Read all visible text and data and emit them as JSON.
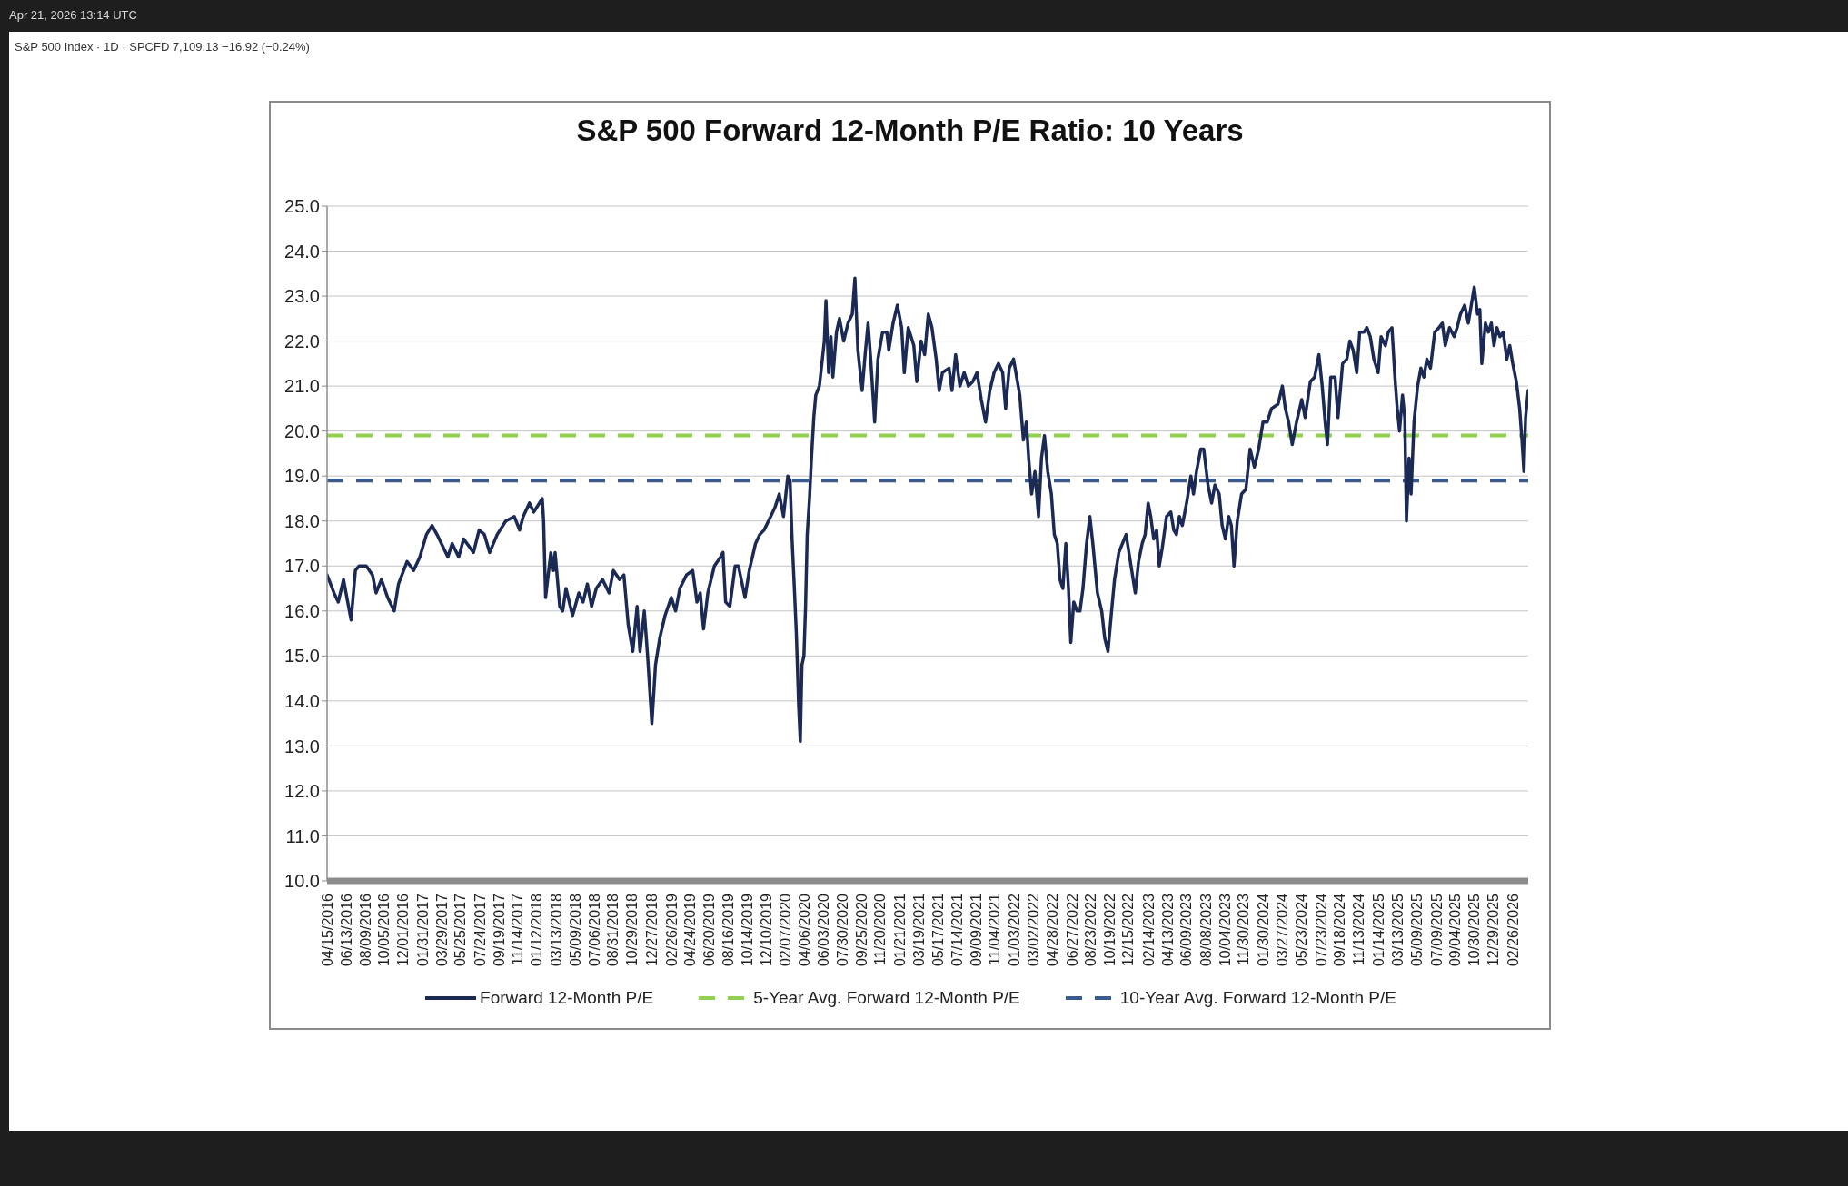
{
  "chart_data": {
    "type": "line",
    "title": "S&P 500 Forward 12-Month P/E Ratio: 10 Years",
    "annotations": [
      "Apr 21, 2026 13:14 UTC",
      "S&P 500 Index · 1D · SPCFD 7,109.13 −16.92 (−0.24%)"
    ],
    "series": [
      {
        "name": "Forward 12-Month P/E",
        "color": "#1b2a55",
        "x": [
          "2016-04-15",
          "2016-05-06",
          "2016-05-19",
          "2016-06-04",
          "2016-06-14",
          "2016-06-27",
          "2016-07-10",
          "2016-07-21",
          "2016-08-12",
          "2016-08-31",
          "2016-09-11",
          "2016-09-27",
          "2016-10-16",
          "2016-11-05",
          "2016-11-18",
          "2016-12-14",
          "2017-01-03",
          "2017-01-22",
          "2017-02-11",
          "2017-02-28",
          "2017-03-15",
          "2017-04-17",
          "2017-04-30",
          "2017-05-20",
          "2017-06-04",
          "2017-07-04",
          "2017-07-21",
          "2017-08-06",
          "2017-08-22",
          "2017-09-14",
          "2017-10-10",
          "2017-11-05",
          "2017-11-21",
          "2017-12-02",
          "2017-12-21",
          "2018-01-03",
          "2018-01-29",
          "2018-02-02",
          "2018-02-08",
          "2018-02-24",
          "2018-03-04",
          "2018-03-09",
          "2018-03-23",
          "2018-04-01",
          "2018-04-11",
          "2018-05-01",
          "2018-05-20",
          "2018-06-02",
          "2018-06-15",
          "2018-06-28",
          "2018-07-12",
          "2018-07-31",
          "2018-08-20",
          "2018-09-02",
          "2018-09-21",
          "2018-10-04",
          "2018-10-17",
          "2018-10-31",
          "2018-11-13",
          "2018-11-22",
          "2018-12-05",
          "2018-12-15",
          "2018-12-28",
          "2019-01-08",
          "2019-01-21",
          "2019-02-06",
          "2019-02-25",
          "2019-03-10",
          "2019-03-23",
          "2019-04-12",
          "2019-05-01",
          "2019-05-14",
          "2019-05-24",
          "2019-06-03",
          "2019-06-16",
          "2019-07-06",
          "2019-07-25",
          "2019-08-01",
          "2019-08-09",
          "2019-08-22",
          "2019-09-07",
          "2019-09-17",
          "2019-10-07",
          "2019-10-20",
          "2019-11-08",
          "2019-11-21",
          "2019-12-04",
          "2019-12-24",
          "2020-01-06",
          "2020-01-19",
          "2020-02-01",
          "2020-02-14",
          "2020-02-21",
          "2020-02-27",
          "2020-03-05",
          "2020-03-11",
          "2020-03-18",
          "2020-03-23",
          "2020-03-28",
          "2020-04-03",
          "2020-04-08",
          "2020-04-13",
          "2020-04-20",
          "2020-04-26",
          "2020-05-03",
          "2020-05-09",
          "2020-05-20",
          "2020-05-29",
          "2020-06-04",
          "2020-06-09",
          "2020-06-17",
          "2020-06-24",
          "2020-06-30",
          "2020-07-11",
          "2020-07-20",
          "2020-08-02",
          "2020-08-15",
          "2020-08-28",
          "2020-09-05",
          "2020-09-14",
          "2020-09-27",
          "2020-10-06",
          "2020-10-15",
          "2020-10-23",
          "2020-11-04",
          "2020-11-14",
          "2020-11-28",
          "2020-12-11",
          "2020-12-17",
          "2020-12-30",
          "2021-01-12",
          "2021-01-25",
          "2021-02-02",
          "2021-02-14",
          "2021-03-03",
          "2021-03-12",
          "2021-03-25",
          "2021-04-05",
          "2021-04-16",
          "2021-04-27",
          "2021-05-10",
          "2021-05-19",
          "2021-05-29",
          "2021-06-18",
          "2021-06-27",
          "2021-07-08",
          "2021-07-21",
          "2021-08-03",
          "2021-08-16",
          "2021-08-29",
          "2021-09-11",
          "2021-09-24",
          "2021-10-07",
          "2021-10-20",
          "2021-11-02",
          "2021-11-15",
          "2021-11-28",
          "2021-12-07",
          "2021-12-18",
          "2021-12-31",
          "2022-01-19",
          "2022-01-30",
          "2022-02-08",
          "2022-02-15",
          "2022-02-24",
          "2022-03-06",
          "2022-03-17",
          "2022-03-26",
          "2022-04-04",
          "2022-04-14",
          "2022-04-25",
          "2022-05-04",
          "2022-05-13",
          "2022-05-21",
          "2022-05-30",
          "2022-06-08",
          "2022-06-16",
          "2022-06-23",
          "2022-07-02",
          "2022-07-12",
          "2022-07-21",
          "2022-07-30",
          "2022-08-10",
          "2022-08-20",
          "2022-08-29",
          "2022-09-12",
          "2022-09-25",
          "2022-10-04",
          "2022-10-14",
          "2022-10-25",
          "2022-11-03",
          "2022-11-16",
          "2022-12-08",
          "2023-01-05",
          "2023-01-15",
          "2023-01-26",
          "2023-02-04",
          "2023-02-13",
          "2023-02-21",
          "2023-03-02",
          "2023-03-11",
          "2023-03-19",
          "2023-03-28",
          "2023-04-10",
          "2023-04-23",
          "2023-05-02",
          "2023-05-10",
          "2023-05-19",
          "2023-05-28",
          "2023-06-10",
          "2023-06-23",
          "2023-07-01",
          "2023-07-10",
          "2023-07-23",
          "2023-08-01",
          "2023-08-14",
          "2023-08-25",
          "2023-09-04",
          "2023-09-17",
          "2023-09-26",
          "2023-10-06",
          "2023-10-16",
          "2023-10-24",
          "2023-11-01",
          "2023-11-11",
          "2023-11-24",
          "2023-12-07",
          "2023-12-20",
          "2024-01-02",
          "2024-01-15",
          "2024-01-28",
          "2024-02-10",
          "2024-02-23",
          "2024-03-14",
          "2024-03-27",
          "2024-04-05",
          "2024-04-15",
          "2024-04-26",
          "2024-05-09",
          "2024-05-25",
          "2024-06-04",
          "2024-06-20",
          "2024-07-03",
          "2024-07-16",
          "2024-07-26",
          "2024-08-04",
          "2024-08-11",
          "2024-08-21",
          "2024-09-03",
          "2024-09-12",
          "2024-09-26",
          "2024-10-09",
          "2024-10-18",
          "2024-10-28",
          "2024-11-08",
          "2024-11-17",
          "2024-11-30",
          "2024-12-09",
          "2024-12-19",
          "2024-12-30",
          "2025-01-12",
          "2025-01-21",
          "2025-02-03",
          "2025-02-12",
          "2025-02-23",
          "2025-03-04",
          "2025-03-11",
          "2025-03-18",
          "2025-03-27",
          "2025-04-03",
          "2025-04-08",
          "2025-04-16",
          "2025-04-22",
          "2025-05-01",
          "2025-05-12",
          "2025-05-22",
          "2025-05-31",
          "2025-06-09",
          "2025-06-20",
          "2025-07-03",
          "2025-07-16",
          "2025-07-26",
          "2025-08-04",
          "2025-08-17",
          "2025-08-31",
          "2025-09-09",
          "2025-09-19",
          "2025-10-02",
          "2025-10-13",
          "2025-10-22",
          "2025-10-31",
          "2025-11-10",
          "2025-11-17",
          "2025-11-23",
          "2025-12-04",
          "2025-12-13",
          "2025-12-22",
          "2025-12-30",
          "2026-01-08",
          "2026-01-17",
          "2026-01-27",
          "2026-02-07",
          "2026-02-16",
          "2026-02-25",
          "2026-03-08",
          "2026-03-18",
          "2026-03-25",
          "2026-03-31",
          "2026-04-05",
          "2026-04-13"
        ],
        "values": [
          16.8,
          16.4,
          16.2,
          16.7,
          16.3,
          15.8,
          16.9,
          17.0,
          17.0,
          16.8,
          16.4,
          16.7,
          16.3,
          16.0,
          16.6,
          17.1,
          16.9,
          17.2,
          17.7,
          17.9,
          17.7,
          17.2,
          17.5,
          17.2,
          17.6,
          17.3,
          17.8,
          17.7,
          17.3,
          17.7,
          18.0,
          18.1,
          17.8,
          18.1,
          18.4,
          18.2,
          18.5,
          18.0,
          16.3,
          17.3,
          16.9,
          17.3,
          16.1,
          16.0,
          16.5,
          15.9,
          16.4,
          16.2,
          16.6,
          16.1,
          16.5,
          16.7,
          16.4,
          16.9,
          16.7,
          16.8,
          15.7,
          15.1,
          16.1,
          15.1,
          16.0,
          15.0,
          13.5,
          14.8,
          15.4,
          15.9,
          16.3,
          16.0,
          16.5,
          16.8,
          16.9,
          16.2,
          16.4,
          15.6,
          16.4,
          17.0,
          17.2,
          17.3,
          16.2,
          16.1,
          17.0,
          17.0,
          16.3,
          16.9,
          17.5,
          17.7,
          17.8,
          18.1,
          18.3,
          18.6,
          18.1,
          19.0,
          18.9,
          17.6,
          16.5,
          15.5,
          13.9,
          13.1,
          14.8,
          15.0,
          16.1,
          17.7,
          18.5,
          19.4,
          20.3,
          20.8,
          21.0,
          21.6,
          22.0,
          22.9,
          21.3,
          22.1,
          21.2,
          22.2,
          22.5,
          22.0,
          22.4,
          22.6,
          23.4,
          21.8,
          20.9,
          21.7,
          22.4,
          21.6,
          20.2,
          21.6,
          22.2,
          22.2,
          21.8,
          22.4,
          22.8,
          22.3,
          21.3,
          22.3,
          21.9,
          21.1,
          22.0,
          21.7,
          22.6,
          22.3,
          21.6,
          20.9,
          21.3,
          21.4,
          20.9,
          21.7,
          21.0,
          21.3,
          21.0,
          21.1,
          21.3,
          20.7,
          20.2,
          20.9,
          21.3,
          21.5,
          21.3,
          20.5,
          21.4,
          21.6,
          20.8,
          19.8,
          20.2,
          19.4,
          18.6,
          19.1,
          18.1,
          19.4,
          19.9,
          19.1,
          18.6,
          17.7,
          17.5,
          16.7,
          16.5,
          17.5,
          16.5,
          15.3,
          16.2,
          16.0,
          16.0,
          16.5,
          17.5,
          18.1,
          17.5,
          16.4,
          16.0,
          15.4,
          15.1,
          16.0,
          16.7,
          17.3,
          17.7,
          16.4,
          17.1,
          17.5,
          17.7,
          18.4,
          18.1,
          17.6,
          17.8,
          17.0,
          17.4,
          18.1,
          18.2,
          17.8,
          17.7,
          18.1,
          17.9,
          18.4,
          19.0,
          18.6,
          19.1,
          19.6,
          19.6,
          18.8,
          18.4,
          18.8,
          18.6,
          17.9,
          17.6,
          18.1,
          17.9,
          17.0,
          18.0,
          18.6,
          18.7,
          19.6,
          19.2,
          19.6,
          20.2,
          20.2,
          20.5,
          20.6,
          21.0,
          20.5,
          20.2,
          19.7,
          20.2,
          20.7,
          20.3,
          21.1,
          21.2,
          21.7,
          21.0,
          20.2,
          19.7,
          21.2,
          21.2,
          20.3,
          21.5,
          21.6,
          22.0,
          21.8,
          21.3,
          22.2,
          22.2,
          22.3,
          22.1,
          21.6,
          21.3,
          22.1,
          21.9,
          22.2,
          22.3,
          21.2,
          20.5,
          20.0,
          20.8,
          20.3,
          18.0,
          19.4,
          18.6,
          20.2,
          21.0,
          21.4,
          21.2,
          21.6,
          21.4,
          22.2,
          22.3,
          22.4,
          21.9,
          22.3,
          22.1,
          22.3,
          22.6,
          22.8,
          22.4,
          22.8,
          23.2,
          22.6,
          22.7,
          21.5,
          22.4,
          22.2,
          22.4,
          21.9,
          22.3,
          22.1,
          22.2,
          21.6,
          21.9,
          21.5,
          21.1,
          20.5,
          19.8,
          19.1,
          20.3,
          20.9
        ]
      }
    ],
    "ref_lines": [
      {
        "axis": "y",
        "value": 19.9,
        "label": "5-Year Avg. Forward 12-Month P/E",
        "color": "#92d050",
        "line_style": "dashed"
      },
      {
        "axis": "y",
        "value": 18.9,
        "label": "10-Year Avg. Forward 12-Month P/E",
        "color": "#3b5b8f",
        "line_style": "dashed"
      }
    ],
    "xlim": [
      "2016-04-15",
      "2026-04-13"
    ],
    "xticks": [
      {
        "value": "2016-04-15",
        "label": "04/15/2016"
      },
      {
        "value": "2016-06-13",
        "label": "06/13/2016"
      },
      {
        "value": "2016-08-09",
        "label": "08/09/2016"
      },
      {
        "value": "2016-10-05",
        "label": "10/05/2016"
      },
      {
        "value": "2016-12-01",
        "label": "12/01/2016"
      },
      {
        "value": "2017-01-31",
        "label": "01/31/2017"
      },
      {
        "value": "2017-03-29",
        "label": "03/29/2017"
      },
      {
        "value": "2017-05-25",
        "label": "05/25/2017"
      },
      {
        "value": "2017-07-24",
        "label": "07/24/2017"
      },
      {
        "value": "2017-09-19",
        "label": "09/19/2017"
      },
      {
        "value": "2017-11-14",
        "label": "11/14/2017"
      },
      {
        "value": "2018-01-12",
        "label": "01/12/2018"
      },
      {
        "value": "2018-03-13",
        "label": "03/13/2018"
      },
      {
        "value": "2018-05-09",
        "label": "05/09/2018"
      },
      {
        "value": "2018-07-06",
        "label": "07/06/2018"
      },
      {
        "value": "2018-08-31",
        "label": "08/31/2018"
      },
      {
        "value": "2018-10-29",
        "label": "10/29/2018"
      },
      {
        "value": "2018-12-27",
        "label": "12/27/2018"
      },
      {
        "value": "2019-02-26",
        "label": "02/26/2019"
      },
      {
        "value": "2019-04-24",
        "label": "04/24/2019"
      },
      {
        "value": "2019-06-20",
        "label": "06/20/2019"
      },
      {
        "value": "2019-08-16",
        "label": "08/16/2019"
      },
      {
        "value": "2019-10-14",
        "label": "10/14/2019"
      },
      {
        "value": "2019-12-10",
        "label": "12/10/2019"
      },
      {
        "value": "2020-02-07",
        "label": "02/07/2020"
      },
      {
        "value": "2020-04-06",
        "label": "04/06/2020"
      },
      {
        "value": "2020-06-03",
        "label": "06/03/2020"
      },
      {
        "value": "2020-07-30",
        "label": "07/30/2020"
      },
      {
        "value": "2020-09-25",
        "label": "09/25/2020"
      },
      {
        "value": "2020-11-20",
        "label": "11/20/2020"
      },
      {
        "value": "2021-01-21",
        "label": "01/21/2021"
      },
      {
        "value": "2021-03-19",
        "label": "03/19/2021"
      },
      {
        "value": "2021-05-17",
        "label": "05/17/2021"
      },
      {
        "value": "2021-07-14",
        "label": "07/14/2021"
      },
      {
        "value": "2021-09-09",
        "label": "09/09/2021"
      },
      {
        "value": "2021-11-04",
        "label": "11/04/2021"
      },
      {
        "value": "2022-01-03",
        "label": "01/03/2022"
      },
      {
        "value": "2022-03-02",
        "label": "03/02/2022"
      },
      {
        "value": "2022-04-28",
        "label": "04/28/2022"
      },
      {
        "value": "2022-06-27",
        "label": "06/27/2022"
      },
      {
        "value": "2022-08-23",
        "label": "08/23/2022"
      },
      {
        "value": "2022-10-19",
        "label": "10/19/2022"
      },
      {
        "value": "2022-12-15",
        "label": "12/15/2022"
      },
      {
        "value": "2023-02-14",
        "label": "02/14/2023"
      },
      {
        "value": "2023-04-13",
        "label": "04/13/2023"
      },
      {
        "value": "2023-06-09",
        "label": "06/09/2023"
      },
      {
        "value": "2023-08-08",
        "label": "08/08/2023"
      },
      {
        "value": "2023-10-04",
        "label": "10/04/2023"
      },
      {
        "value": "2023-11-30",
        "label": "11/30/2023"
      },
      {
        "value": "2024-01-30",
        "label": "01/30/2024"
      },
      {
        "value": "2024-03-27",
        "label": "03/27/2024"
      },
      {
        "value": "2024-05-23",
        "label": "05/23/2024"
      },
      {
        "value": "2024-07-23",
        "label": "07/23/2024"
      },
      {
        "value": "2024-09-18",
        "label": "09/18/2024"
      },
      {
        "value": "2024-11-13",
        "label": "11/13/2024"
      },
      {
        "value": "2025-01-14",
        "label": "01/14/2025"
      },
      {
        "value": "2025-03-13",
        "label": "03/13/2025"
      },
      {
        "value": "2025-05-09",
        "label": "05/09/2025"
      },
      {
        "value": "2025-07-09",
        "label": "07/09/2025"
      },
      {
        "value": "2025-09-04",
        "label": "09/04/2025"
      },
      {
        "value": "2025-10-30",
        "label": "10/30/2025"
      },
      {
        "value": "2025-12-29",
        "label": "12/29/2025"
      },
      {
        "value": "2026-02-26",
        "label": "02/26/2026"
      }
    ],
    "ylim": [
      10,
      25
    ],
    "yticks": [
      {
        "value": 10,
        "label": "10.0"
      },
      {
        "value": 11,
        "label": "11.0"
      },
      {
        "value": 12,
        "label": "12.0"
      },
      {
        "value": 13,
        "label": "13.0"
      },
      {
        "value": 14,
        "label": "14.0"
      },
      {
        "value": 15,
        "label": "15.0"
      },
      {
        "value": 16,
        "label": "16.0"
      },
      {
        "value": 17,
        "label": "17.0"
      },
      {
        "value": 18,
        "label": "18.0"
      },
      {
        "value": 19,
        "label": "19.0"
      },
      {
        "value": 20,
        "label": "20.0"
      },
      {
        "value": 21,
        "label": "21.0"
      },
      {
        "value": 22,
        "label": "22.0"
      },
      {
        "value": 23,
        "label": "23.0"
      },
      {
        "value": 24,
        "label": "24.0"
      },
      {
        "value": 25,
        "label": "25.0"
      }
    ],
    "grid": "y",
    "legend": "bottom"
  }
}
